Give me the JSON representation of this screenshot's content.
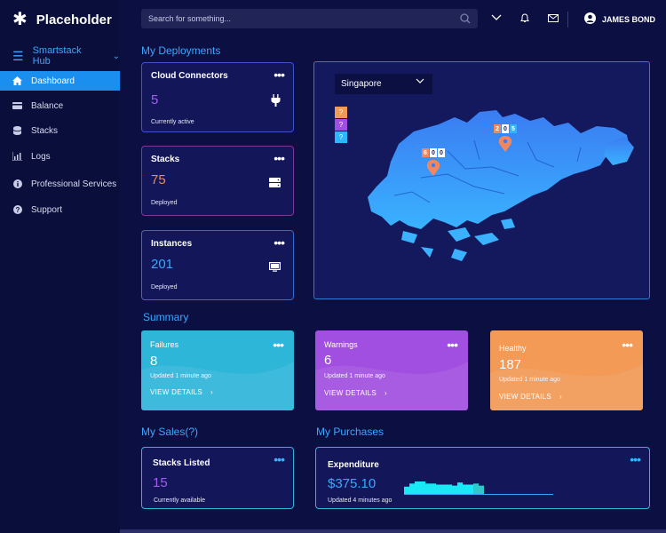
{
  "app": {
    "title": "Placeholder",
    "hub": "Smartstack Hub"
  },
  "sidebar": {
    "items": [
      {
        "label": "Dashboard",
        "icon": "home-icon"
      },
      {
        "label": "Balance",
        "icon": "wallet-icon"
      },
      {
        "label": "Stacks",
        "icon": "database-icon"
      },
      {
        "label": "Logs",
        "icon": "chart-icon"
      },
      {
        "label": "Professional Services",
        "icon": "info-icon"
      },
      {
        "label": "Support",
        "icon": "help-icon"
      }
    ]
  },
  "header": {
    "search_placeholder": "Search for something...",
    "user": "JAMES BOND"
  },
  "sections": {
    "deployments": "My Deployments",
    "summary": "Summary",
    "sales": "My Sales(?)",
    "purchases": "My Purchases"
  },
  "deployments": [
    {
      "title": "Cloud Connectors",
      "value": "5",
      "sub": "Currently active",
      "color": "#a45cf2",
      "icon": "plug-icon"
    },
    {
      "title": "Stacks",
      "value": "75",
      "sub": "Deployed",
      "color": "#f2875f",
      "icon": "server-icon"
    },
    {
      "title": "Instances",
      "value": "201",
      "sub": "Deployed",
      "color": "#3aa7ff",
      "icon": "monitor-icon"
    }
  ],
  "map": {
    "region": "Singapore",
    "legend": [
      "?",
      "?",
      "?"
    ],
    "markers": [
      {
        "digits": [
          "6",
          "0",
          "0"
        ]
      },
      {
        "digits": [
          "2",
          "0",
          "5"
        ]
      }
    ]
  },
  "summary": [
    {
      "title": "Failures",
      "value": "8",
      "updated": "Updated 1 minute ago",
      "link": "VIEW DETAILS",
      "color": "#2eb6d9"
    },
    {
      "title": "Warnings",
      "value": "6",
      "updated": "Updated 1 minute ago",
      "link": "VIEW DETAILS",
      "color": "#a14fe0"
    },
    {
      "title": "Healthy",
      "value": "187",
      "updated": "Updated 1 minute ago",
      "link": "VIEW DETAILS",
      "color": "#f29a56"
    }
  ],
  "sales": {
    "title": "Stacks Listed",
    "value": "15",
    "sub": "Currently available"
  },
  "purchases": {
    "title": "Expenditure",
    "value": "$375.10",
    "sub": "Updated 4 minutes ago",
    "spark": [
      7,
      10,
      12,
      12,
      10,
      10,
      9,
      9,
      9,
      8,
      11,
      9,
      9,
      10,
      8
    ]
  }
}
